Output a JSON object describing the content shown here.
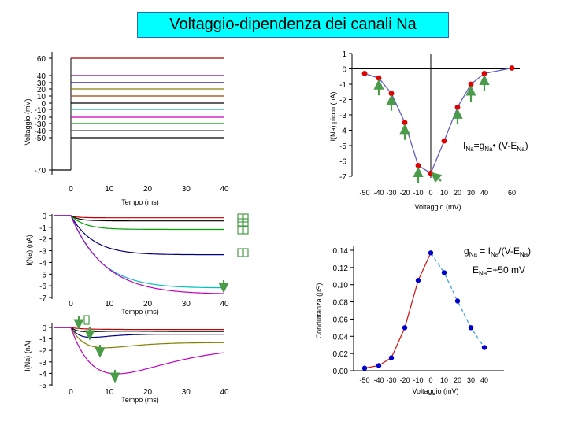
{
  "title": "Voltaggio-dipendenza dei canali Na",
  "colors": {
    "title_bg": "#00ffff",
    "red_point": "#e00000",
    "blue_point": "#0000cc",
    "arrow_green": "#4a9c4a"
  },
  "chart_data": [
    {
      "type": "line",
      "id": "voltage-protocol",
      "xlabel": "Tempo (ms)",
      "ylabel": "Voltaggio (mV)",
      "xlim": [
        0,
        40
      ],
      "x_ticks": [
        "0",
        "10",
        "20",
        "30",
        "40"
      ],
      "y_ticks": [
        "60",
        "40",
        "30",
        "20",
        "10",
        "0",
        "-10",
        "-20",
        "-30",
        "-40",
        "-50",
        "-70"
      ],
      "holding_mV": -70,
      "step_start_ms": 0,
      "steps_mV": [
        60,
        40,
        30,
        20,
        10,
        0,
        -10,
        -20,
        -30,
        -40,
        -50
      ],
      "step_colors": [
        "#a00000",
        "#8000a0",
        "#0000a0",
        "#808000",
        "#a04000",
        "#000000",
        "#00c0c0",
        "#c000c0",
        "#00a000",
        "#404040",
        "#000000"
      ]
    },
    {
      "type": "scatter",
      "id": "iv-curve",
      "xlabel": "Voltaggio (mV)",
      "ylabel": "I(Na) picco (nA)",
      "xlim": [
        -50,
        60
      ],
      "ylim": [
        -7,
        1
      ],
      "x_ticks": [
        "-50",
        "-40",
        "-30",
        "-20",
        "-10",
        "0",
        "10",
        "20",
        "30",
        "40",
        "60"
      ],
      "y_ticks": [
        "1",
        "0",
        "-1",
        "-2",
        "-3",
        "-4",
        "-5",
        "-6",
        "-7"
      ],
      "x": [
        -50,
        -40,
        -30,
        -20,
        -10,
        0,
        10,
        20,
        30,
        40,
        60
      ],
      "y": [
        -0.3,
        -0.6,
        -1.6,
        -3.5,
        -6.3,
        -6.8,
        -4.7,
        -2.5,
        -1.0,
        -0.3,
        0.05
      ],
      "formula_main": "I",
      "formula_sub1": "Na",
      "formula_mid": "=g",
      "formula_sub2": "Na",
      "formula_end": "• (V-E",
      "formula_sub3": "Na",
      "formula_close": ")"
    },
    {
      "type": "line",
      "id": "current-traces-top",
      "xlabel": "Tempo (ms)",
      "ylabel": "I(Na) (nA)",
      "xlim": [
        0,
        40
      ],
      "ylim": [
        -7,
        0
      ],
      "x_ticks": [
        "0",
        "10",
        "20",
        "30",
        "40"
      ],
      "y_ticks": [
        "0",
        "-1",
        "-2",
        "-3",
        "-4",
        "-5",
        "-6",
        "-7"
      ],
      "series": [
        {
          "name": "60 mV",
          "color": "#c00000",
          "peak": -0.2
        },
        {
          "name": "40 mV",
          "color": "#000000",
          "peak": -0.5
        },
        {
          "name": "30 mV",
          "color": "#00a000",
          "peak": -1.2
        },
        {
          "name": "20 mV",
          "color": "#000080",
          "peak": -3.4
        },
        {
          "name": "10 mV",
          "color": "#00c0c0",
          "peak": -6.3
        },
        {
          "name": "0 mV",
          "color": "#c000c0",
          "peak": -6.8
        }
      ]
    },
    {
      "type": "line",
      "id": "current-traces-bottom",
      "xlabel": "Tempo (ms)",
      "ylabel": "I(Na) (nA)",
      "xlim": [
        0,
        40
      ],
      "ylim": [
        -5,
        0
      ],
      "x_ticks": [
        "0",
        "10",
        "20",
        "30",
        "40"
      ],
      "y_ticks": [
        "0",
        "-1",
        "-2",
        "-3",
        "-4",
        "-5"
      ],
      "series": [
        {
          "name": "-50 mV",
          "color": "#c00000",
          "peak": -0.2
        },
        {
          "name": "-40 mV",
          "color": "#000000",
          "peak": -0.6
        },
        {
          "name": "-30 mV",
          "color": "#000080",
          "peak": -1.2
        },
        {
          "name": "-20 mV",
          "color": "#808000",
          "peak": -2.4
        },
        {
          "name": "-10 mV",
          "color": "#c000c0",
          "peak": -4.7
        }
      ]
    },
    {
      "type": "scatter",
      "id": "conductance",
      "xlabel": "Voltaggio (mV)",
      "ylabel": "Conduttanza (µS)",
      "xlim": [
        -50,
        40
      ],
      "ylim": [
        0,
        0.14
      ],
      "x_ticks": [
        "-50",
        "-40",
        "-30",
        "-20",
        "-10",
        "0",
        "10",
        "20",
        "30",
        "40"
      ],
      "y_ticks": [
        "0.00",
        "0.02",
        "0.04",
        "0.06",
        "0.08",
        "0.10",
        "0.12",
        "0.14"
      ],
      "x": [
        -50,
        -40,
        -30,
        -20,
        -10,
        0,
        10,
        20,
        30,
        40
      ],
      "y": [
        0.003,
        0.006,
        0.015,
        0.05,
        0.105,
        0.137,
        0.114,
        0.081,
        0.05,
        0.027
      ],
      "eq1_main": "g",
      "eq1_sub1": "Na",
      "eq1_mid": " = I",
      "eq1_sub2": "Na",
      "eq1_end": "/(V-E",
      "eq1_sub3": "Na",
      "eq1_close": ")",
      "eq2_main": "E",
      "eq2_sub": "Na",
      "eq2_val": "=+50 mV"
    }
  ]
}
